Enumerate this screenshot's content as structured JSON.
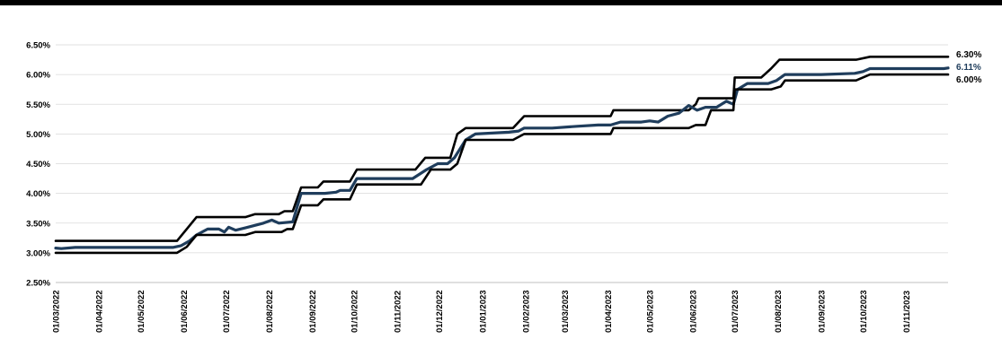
{
  "chart_data": {
    "type": "line",
    "title": "",
    "xlabel": "",
    "ylabel": "",
    "ylim": [
      0.025,
      0.065
    ],
    "y_ticks": [
      "2.50%",
      "3.00%",
      "3.50%",
      "4.00%",
      "4.50%",
      "5.00%",
      "5.50%",
      "6.00%",
      "6.50%"
    ],
    "x_ticks": [
      "01/03/2022",
      "01/04/2022",
      "01/05/2022",
      "01/06/2022",
      "01/07/2022",
      "01/08/2022",
      "01/09/2022",
      "01/10/2022",
      "01/11/2022",
      "01/12/2022",
      "01/01/2023",
      "01/02/2023",
      "01/03/2023",
      "01/04/2023",
      "01/05/2023",
      "01/06/2023",
      "01/07/2023",
      "01/08/2023",
      "01/09/2023",
      "01/10/2023",
      "01/11/2023"
    ],
    "grid": true,
    "legend": "none",
    "end_labels": [
      "6.30%",
      "6.11%",
      "6.00%"
    ],
    "series": [
      {
        "color": "#000000",
        "values": [
          [
            "2022-03-01",
            3.2
          ],
          [
            "2022-05-27",
            3.2
          ],
          [
            "2022-06-10",
            3.6
          ],
          [
            "2022-07-15",
            3.6
          ],
          [
            "2022-07-22",
            3.65
          ],
          [
            "2022-08-08",
            3.65
          ],
          [
            "2022-08-12",
            3.7
          ],
          [
            "2022-08-18",
            3.7
          ],
          [
            "2022-08-24",
            4.1
          ],
          [
            "2022-09-05",
            4.1
          ],
          [
            "2022-09-09",
            4.2
          ],
          [
            "2022-09-28",
            4.2
          ],
          [
            "2022-10-03",
            4.4
          ],
          [
            "2022-11-14",
            4.4
          ],
          [
            "2022-11-21",
            4.6
          ],
          [
            "2022-12-09",
            4.6
          ],
          [
            "2022-12-14",
            5.0
          ],
          [
            "2022-12-20",
            5.1
          ],
          [
            "2023-01-23",
            5.1
          ],
          [
            "2023-01-31",
            5.3
          ],
          [
            "2023-04-03",
            5.3
          ],
          [
            "2023-04-05",
            5.4
          ],
          [
            "2023-05-29",
            5.4
          ],
          [
            "2023-06-03",
            5.5
          ],
          [
            "2023-06-05",
            5.6
          ],
          [
            "2023-06-30",
            5.6
          ],
          [
            "2023-07-01",
            5.95
          ],
          [
            "2023-07-20",
            5.95
          ],
          [
            "2023-07-27",
            6.1
          ],
          [
            "2023-08-02",
            6.25
          ],
          [
            "2023-09-26",
            6.25
          ],
          [
            "2023-10-06",
            6.3
          ],
          [
            "2023-12-01",
            6.3
          ]
        ]
      },
      {
        "color": "#1f3d5c",
        "values": [
          [
            "2022-03-01",
            3.08
          ],
          [
            "2022-03-05",
            3.07
          ],
          [
            "2022-03-15",
            3.09
          ],
          [
            "2022-05-24",
            3.09
          ],
          [
            "2022-05-30",
            3.12
          ],
          [
            "2022-06-05",
            3.2
          ],
          [
            "2022-06-10",
            3.3
          ],
          [
            "2022-06-18",
            3.4
          ],
          [
            "2022-06-26",
            3.4
          ],
          [
            "2022-06-30",
            3.35
          ],
          [
            "2022-07-03",
            3.43
          ],
          [
            "2022-07-08",
            3.38
          ],
          [
            "2022-07-15",
            3.42
          ],
          [
            "2022-07-28",
            3.5
          ],
          [
            "2022-08-03",
            3.55
          ],
          [
            "2022-08-08",
            3.5
          ],
          [
            "2022-08-18",
            3.52
          ],
          [
            "2022-08-24",
            4.0
          ],
          [
            "2022-09-10",
            4.0
          ],
          [
            "2022-09-18",
            4.02
          ],
          [
            "2022-09-21",
            4.05
          ],
          [
            "2022-09-28",
            4.05
          ],
          [
            "2022-10-03",
            4.25
          ],
          [
            "2022-11-12",
            4.25
          ],
          [
            "2022-11-22",
            4.4
          ],
          [
            "2022-11-30",
            4.5
          ],
          [
            "2022-12-07",
            4.5
          ],
          [
            "2022-12-12",
            4.6
          ],
          [
            "2022-12-20",
            4.9
          ],
          [
            "2022-12-27",
            5.0
          ],
          [
            "2023-01-20",
            5.03
          ],
          [
            "2023-01-27",
            5.05
          ],
          [
            "2023-01-31",
            5.1
          ],
          [
            "2023-02-20",
            5.1
          ],
          [
            "2023-03-10",
            5.13
          ],
          [
            "2023-03-25",
            5.15
          ],
          [
            "2023-04-03",
            5.15
          ],
          [
            "2023-04-10",
            5.2
          ],
          [
            "2023-04-25",
            5.2
          ],
          [
            "2023-05-01",
            5.22
          ],
          [
            "2023-05-07",
            5.2
          ],
          [
            "2023-05-14",
            5.3
          ],
          [
            "2023-05-22",
            5.35
          ],
          [
            "2023-05-29",
            5.48
          ],
          [
            "2023-06-04",
            5.4
          ],
          [
            "2023-06-10",
            5.45
          ],
          [
            "2023-06-18",
            5.45
          ],
          [
            "2023-06-25",
            5.55
          ],
          [
            "2023-06-30",
            5.5
          ],
          [
            "2023-07-03",
            5.75
          ],
          [
            "2023-07-10",
            5.85
          ],
          [
            "2023-07-25",
            5.85
          ],
          [
            "2023-07-31",
            5.9
          ],
          [
            "2023-08-06",
            6.0
          ],
          [
            "2023-09-01",
            6.0
          ],
          [
            "2023-09-25",
            6.02
          ],
          [
            "2023-10-01",
            6.05
          ],
          [
            "2023-10-06",
            6.1
          ],
          [
            "2023-11-28",
            6.1
          ],
          [
            "2023-12-01",
            6.11
          ]
        ]
      },
      {
        "color": "#000000",
        "values": [
          [
            "2022-03-01",
            3.0
          ],
          [
            "2022-05-27",
            3.0
          ],
          [
            "2022-06-03",
            3.1
          ],
          [
            "2022-06-10",
            3.3
          ],
          [
            "2022-07-15",
            3.3
          ],
          [
            "2022-07-22",
            3.35
          ],
          [
            "2022-08-10",
            3.35
          ],
          [
            "2022-08-14",
            3.4
          ],
          [
            "2022-08-18",
            3.4
          ],
          [
            "2022-08-24",
            3.8
          ],
          [
            "2022-09-05",
            3.8
          ],
          [
            "2022-09-09",
            3.9
          ],
          [
            "2022-09-28",
            3.9
          ],
          [
            "2022-10-03",
            4.15
          ],
          [
            "2022-11-18",
            4.15
          ],
          [
            "2022-11-25",
            4.4
          ],
          [
            "2022-12-09",
            4.4
          ],
          [
            "2022-12-14",
            4.5
          ],
          [
            "2022-12-20",
            4.9
          ],
          [
            "2023-01-23",
            4.9
          ],
          [
            "2023-01-31",
            5.0
          ],
          [
            "2023-04-03",
            5.0
          ],
          [
            "2023-04-05",
            5.1
          ],
          [
            "2023-05-29",
            5.1
          ],
          [
            "2023-06-03",
            5.15
          ],
          [
            "2023-06-10",
            5.15
          ],
          [
            "2023-06-14",
            5.4
          ],
          [
            "2023-06-30",
            5.4
          ],
          [
            "2023-07-01",
            5.75
          ],
          [
            "2023-07-27",
            5.75
          ],
          [
            "2023-08-03",
            5.8
          ],
          [
            "2023-08-06",
            5.9
          ],
          [
            "2023-09-26",
            5.9
          ],
          [
            "2023-10-06",
            6.0
          ],
          [
            "2023-12-01",
            6.0
          ]
        ]
      }
    ]
  },
  "colors": {
    "band": "#000000",
    "mid": "#1f3d5c",
    "grid": "#d9d9d9"
  }
}
